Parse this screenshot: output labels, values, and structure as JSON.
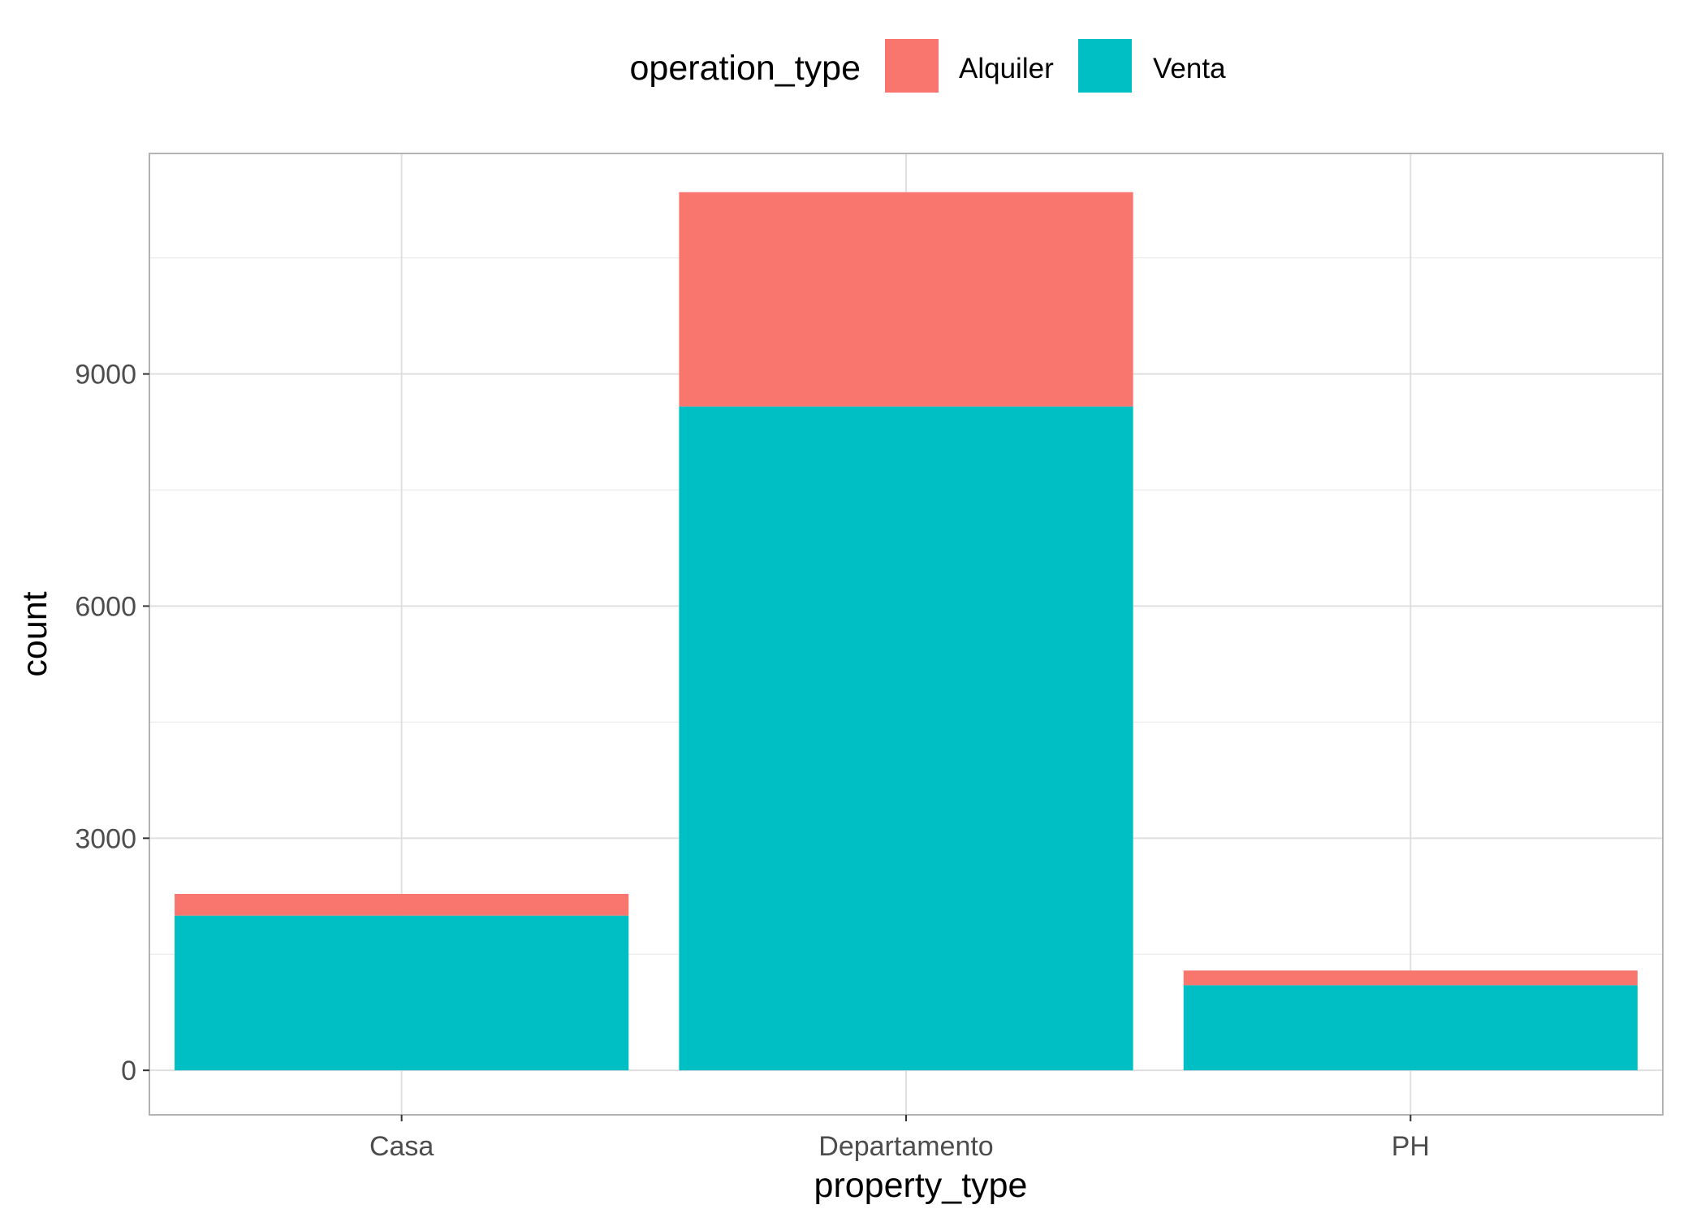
{
  "chart_data": {
    "type": "bar",
    "stacked": true,
    "categories": [
      "Casa",
      "Departamento",
      "PH"
    ],
    "series": [
      {
        "name": "Venta",
        "color": "#00BFC4",
        "values": [
          2000,
          8580,
          1100
        ]
      },
      {
        "name": "Alquiler",
        "color": "#F8766D",
        "values": [
          280,
          2770,
          190
        ]
      }
    ],
    "xlabel": "property_type",
    "ylabel": "count",
    "ylim": [
      -575,
      11850
    ],
    "yticks": [
      0,
      3000,
      6000,
      9000
    ],
    "ytick_labels": [
      "0",
      "3000",
      "6000",
      "9000"
    ],
    "grid": true,
    "legend": {
      "title": "operation_type",
      "position": "top",
      "items": [
        {
          "label": "Alquiler",
          "color": "#F8766D"
        },
        {
          "label": "Venta",
          "color": "#00BFC4"
        }
      ]
    }
  }
}
